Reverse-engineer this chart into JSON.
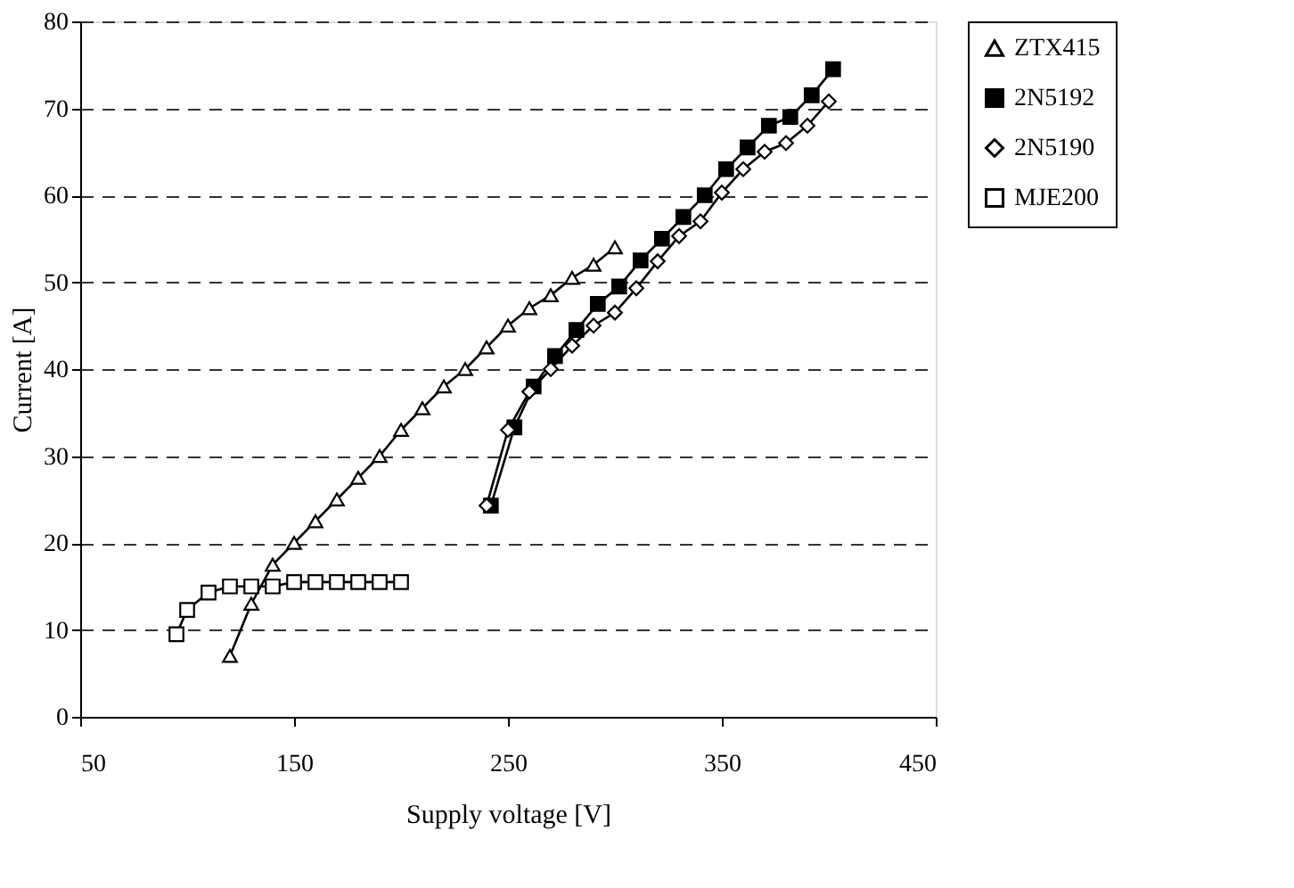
{
  "chart_data": {
    "type": "line",
    "xlabel": "Supply voltage [V]",
    "ylabel": "Current [A]",
    "xlim": [
      50,
      450
    ],
    "xticks": [
      50,
      150,
      250,
      350,
      450
    ],
    "ylim": [
      0,
      80
    ],
    "yticks": [
      0,
      10,
      20,
      30,
      40,
      50,
      60,
      70,
      80
    ],
    "grid": "y",
    "legend": "right",
    "line_style": "solid",
    "series": [
      {
        "name": "ZTX415",
        "color": "#000000",
        "marker": "triangle",
        "x": [
          120,
          130,
          140,
          150,
          160,
          170,
          180,
          190,
          200,
          210,
          220,
          230,
          240,
          250,
          260,
          270,
          280,
          290,
          300
        ],
        "values": [
          7,
          13,
          17.5,
          20,
          22.5,
          25,
          27.5,
          30,
          33,
          35.5,
          38,
          40,
          42.5,
          45,
          47,
          48.5,
          50.5,
          52,
          54
        ]
      },
      {
        "name": "2N5192",
        "color": "#000000",
        "marker": "square",
        "x": [
          242,
          253,
          262,
          272,
          282,
          292,
          302,
          312,
          322,
          332,
          342,
          352,
          362,
          372,
          382,
          392,
          402
        ],
        "values": [
          24.3,
          33.3,
          38,
          41.5,
          44.5,
          47.5,
          49.5,
          52.5,
          55,
          57.5,
          60,
          63,
          65.5,
          68,
          69,
          71.5,
          74.5
        ]
      },
      {
        "name": "2N5190",
        "color": "#000000",
        "marker": "diamond",
        "x": [
          240,
          250,
          260,
          270,
          280,
          290,
          300,
          310,
          320,
          330,
          340,
          350,
          360,
          370,
          380,
          390,
          400
        ],
        "values": [
          24.3,
          33,
          37.4,
          40,
          42.7,
          45,
          46.5,
          49.3,
          52.4,
          55.3,
          57,
          60.3,
          63,
          65,
          66,
          68,
          70.8
        ]
      },
      {
        "name": "MJE200",
        "color": "#000000",
        "marker": "square",
        "x": [
          95,
          100,
          110,
          120,
          130,
          140,
          150,
          160,
          170,
          180,
          190,
          200
        ],
        "values": [
          9.5,
          12.3,
          14.3,
          15,
          15,
          15,
          15.5,
          15.5,
          15.5,
          15.5,
          15.5,
          15.5
        ]
      }
    ]
  }
}
